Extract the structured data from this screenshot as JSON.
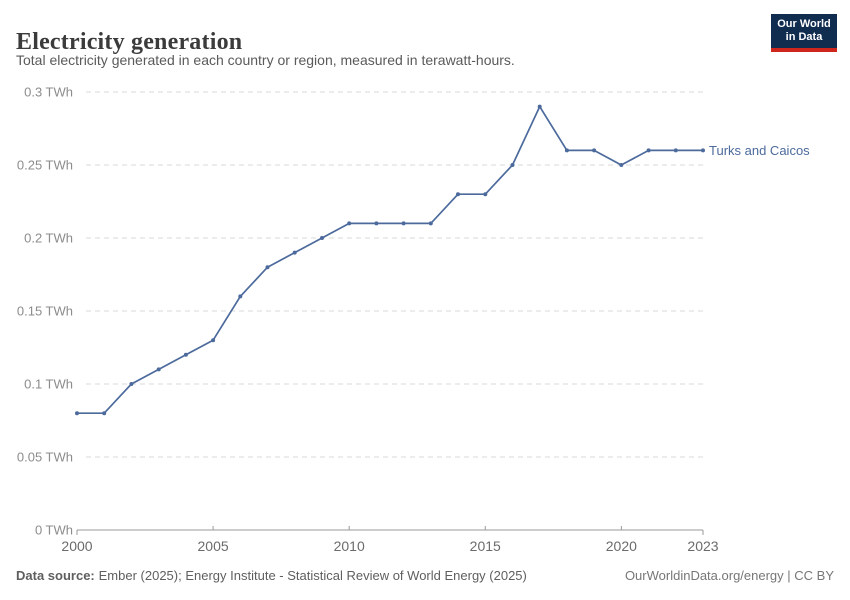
{
  "header": {
    "title": "Electricity generation",
    "subtitle": "Total electricity generated in each country or region, measured in terawatt-hours."
  },
  "logo": {
    "line1": "Our World",
    "line2": "in Data",
    "bg_color": "#102D50",
    "bar_color": "#CE261C"
  },
  "chart_data": {
    "type": "line",
    "title": "Electricity generation",
    "xlabel": "",
    "ylabel": "TWh",
    "xlim": [
      2000,
      2023
    ],
    "ylim": [
      0,
      0.3
    ],
    "grid": true,
    "legend_position": "end-of-line",
    "x": [
      2000,
      2001,
      2002,
      2003,
      2004,
      2005,
      2006,
      2007,
      2008,
      2009,
      2010,
      2011,
      2012,
      2013,
      2014,
      2015,
      2016,
      2017,
      2018,
      2019,
      2020,
      2021,
      2022,
      2023
    ],
    "series": [
      {
        "name": "Turks and Caicos",
        "color": "#4C6A9C",
        "values": [
          0.08,
          0.08,
          0.1,
          0.11,
          0.12,
          0.13,
          0.16,
          0.18,
          0.19,
          0.2,
          0.21,
          0.21,
          0.21,
          0.21,
          0.23,
          0.23,
          0.25,
          0.29,
          0.26,
          0.26,
          0.25,
          0.26,
          0.26,
          0.26
        ]
      }
    ],
    "x_ticks": [
      2000,
      2005,
      2010,
      2015,
      2020,
      2023
    ],
    "x_tick_labels": [
      "2000",
      "2005",
      "2010",
      "2015",
      "2020",
      "2023"
    ],
    "y_ticks": [
      0,
      0.05,
      0.1,
      0.15,
      0.2,
      0.25,
      0.3
    ],
    "y_tick_labels": [
      "0 TWh",
      "0.05 TWh",
      "0.1 TWh",
      "0.15 TWh",
      "0.2 TWh",
      "0.25 TWh",
      "0.3 TWh"
    ],
    "gridline_color": "#dadada",
    "axis_color": "#9a9a9a",
    "y_tick_label_color": "#8c8c8c",
    "x_tick_label_color": "#6b6b6b"
  },
  "footer": {
    "source_label": "Data source:",
    "source_text": "Ember (2025); Energy Institute - Statistical Review of World Energy (2025)",
    "rights": "OurWorldinData.org/energy | CC BY"
  }
}
